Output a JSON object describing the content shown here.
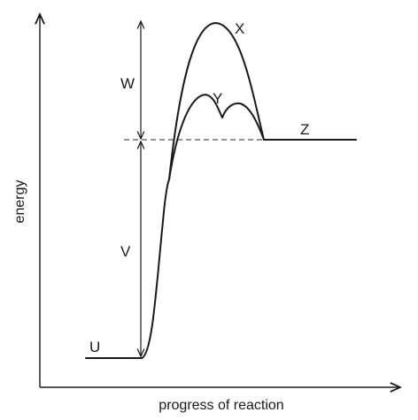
{
  "diagram": {
    "axes": {
      "x_label": "progress of reaction",
      "y_label": "energy"
    },
    "labels": {
      "reactant_level": "U",
      "energy_gap_lower": "V",
      "energy_gap_upper": "W",
      "uncatalysed_curve": "X",
      "catalysed_curve": "Y",
      "product_level": "Z"
    }
  }
}
